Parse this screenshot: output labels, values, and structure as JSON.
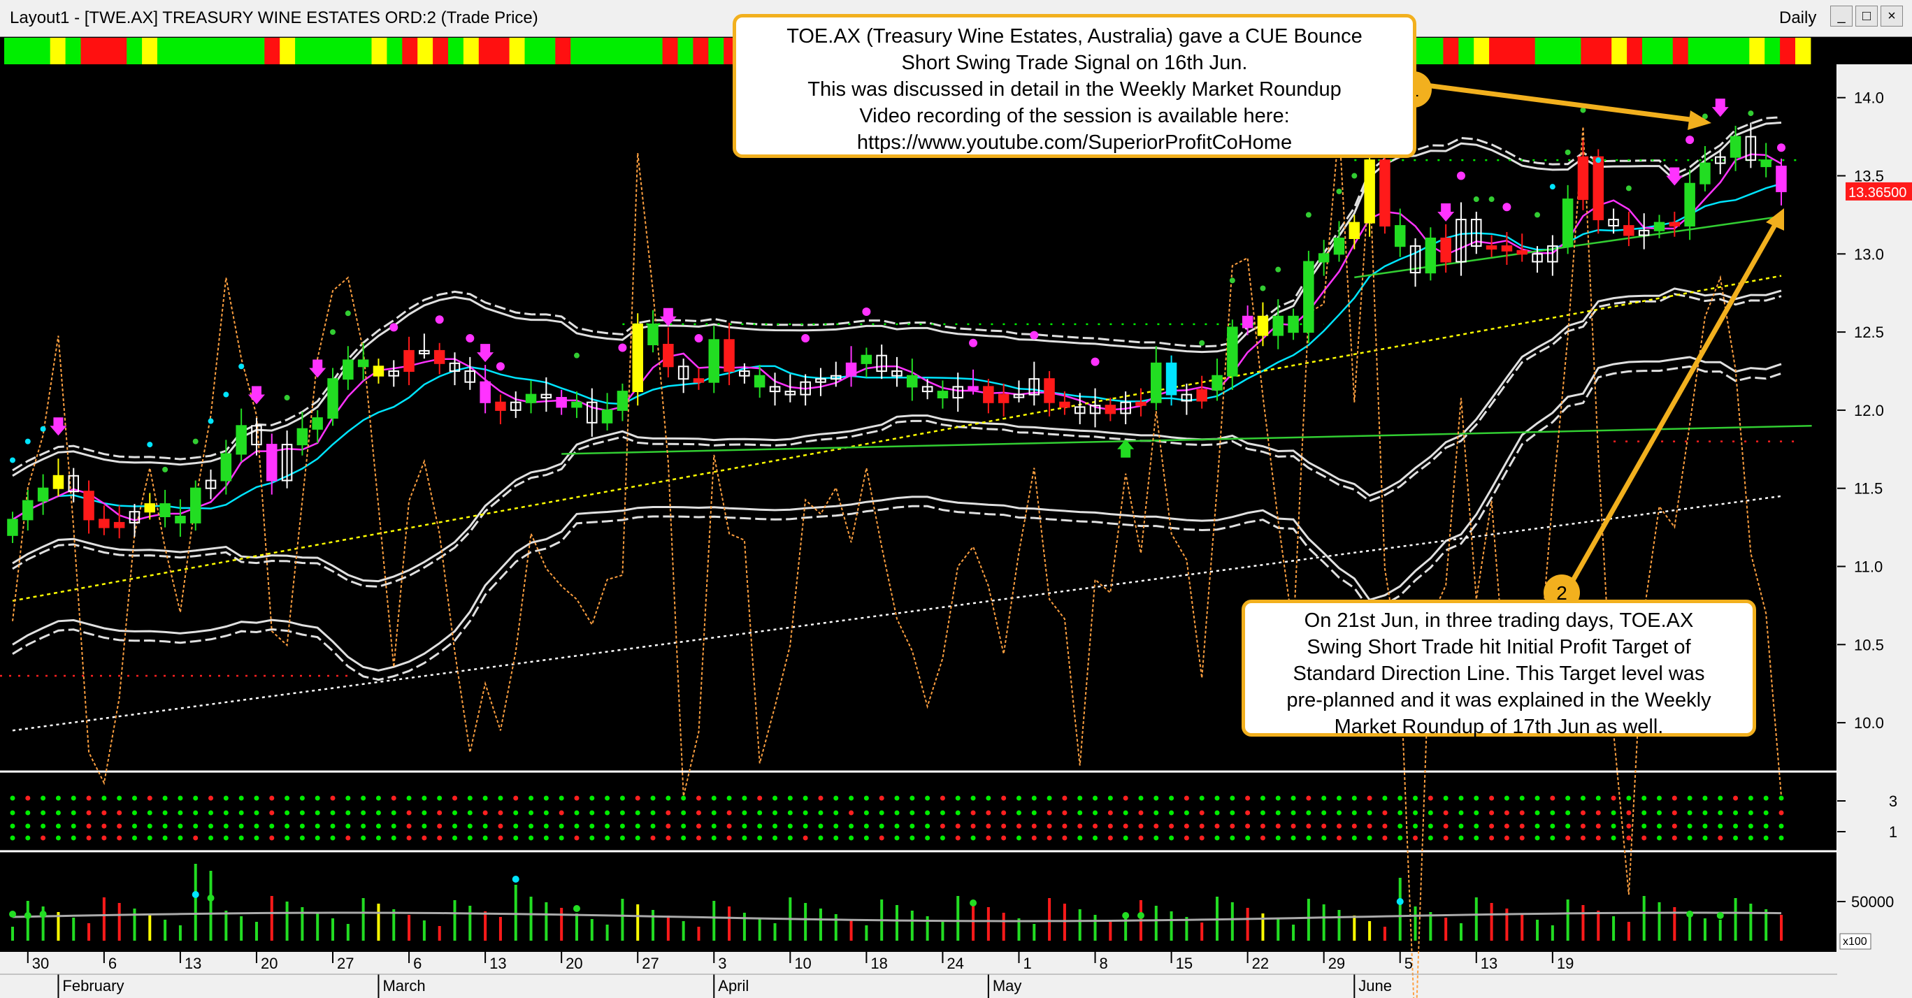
{
  "window": {
    "title": "Layout1 - [TWE.AX] TREASURY WINE ESTATES ORD:2 (Trade Price)",
    "timeframe": "Daily",
    "controls": [
      "_",
      "□",
      "×"
    ]
  },
  "colors": {
    "background": "#000000",
    "bull_candle": "#22dd22",
    "bear_candle": "#ff1a1a",
    "strength_bar": "#ffff00",
    "weakness_bar": "#ff33ff",
    "neutral_bar": "#ffffff",
    "bollinger_band": "#e0e0e0",
    "ma_fast": "#00e5ff",
    "ma_medium": "#ff33ff",
    "ma_slow": "#32cd32",
    "trend_dotted": "#ffff00",
    "oscillator": "#ffa040",
    "callout_border": "#f2b01e",
    "arrow": "#f2b01e"
  },
  "callouts": [
    {
      "number": "1",
      "lines": [
        "TOE.AX (Treasury Wine Estates, Australia) gave a CUE Bounce",
        "Short Swing Trade Signal on 16th Jun.",
        "This was discussed in detail in the Weekly Market Roundup",
        "Video recording of the session is available here:",
        "https://www.youtube.com/SuperiorProfitCoHome"
      ]
    },
    {
      "number": "2",
      "lines": [
        "On 21st Jun, in three trading days, TOE.AX",
        "Swing Short Trade hit Initial Profit Target of",
        "Standard Direction Line. This Target level was",
        "pre-planned and it was explained in the Weekly",
        "Market Roundup of 17th Jun as well."
      ]
    }
  ],
  "chart_data": [
    {
      "type": "candlestick",
      "ylim": [
        9.75,
        14.2
      ],
      "y_ticks": [
        "14.0",
        "13.5",
        "13.0",
        "12.5",
        "12.0",
        "11.5",
        "11.0",
        "10.5",
        "10.0"
      ],
      "last_price_label": "13.36500",
      "x_day_labels": [
        "30",
        "6",
        "13",
        "20",
        "27",
        "6",
        "13",
        "20",
        "27",
        "3",
        "10",
        "18",
        "24",
        "1",
        "8",
        "15",
        "22",
        "29",
        "5",
        "13",
        "19"
      ],
      "x_month_labels": [
        "February",
        "March",
        "April",
        "May",
        "June"
      ],
      "close": [
        11.3,
        11.42,
        11.5,
        11.58,
        11.48,
        11.3,
        11.25,
        11.28,
        11.35,
        11.4,
        11.32,
        11.28,
        11.5,
        11.55,
        11.72,
        11.9,
        11.78,
        11.55,
        11.78,
        11.88,
        11.95,
        12.2,
        12.32,
        12.28,
        12.22,
        12.25,
        12.38,
        12.38,
        12.3,
        12.25,
        12.18,
        12.05,
        12.0,
        12.05,
        12.1,
        12.08,
        12.02,
        12.05,
        11.92,
        12.0,
        12.12,
        12.55,
        12.42,
        12.28,
        12.2,
        12.18,
        12.45,
        12.25,
        12.22,
        12.15,
        12.12,
        12.1,
        12.18,
        12.2,
        12.22,
        12.3,
        12.35,
        12.25,
        12.22,
        12.15,
        12.12,
        12.08,
        12.15,
        12.15,
        12.05,
        12.1,
        12.1,
        12.2,
        12.05,
        12.02,
        11.98,
        12.03,
        11.98,
        12.05,
        12.05,
        12.3,
        12.1,
        12.06,
        12.13,
        12.22,
        12.53,
        12.6,
        12.48,
        12.6,
        12.5,
        12.95,
        13.0,
        13.1,
        13.2,
        13.6,
        13.18,
        13.05,
        12.88,
        13.1,
        12.95,
        13.22,
        13.05,
        13.05,
        13.02,
        13.0,
        12.95,
        13.05,
        13.35,
        13.62,
        13.22,
        13.18,
        13.12,
        13.15,
        13.2,
        13.18,
        13.45,
        13.58,
        13.62,
        13.75,
        13.6,
        13.56,
        13.4
      ],
      "bar_colors_sequence": "green,green,green,yellow,white,red,red,red,white,yellow,green,green,green,white,green,green,white,magenta,white,green,green,green,green,green,yellow,white,red,white,red,white,white,magenta,red,white,green,white,magenta,green,white,green,green,yellow,green,red,white,red,green,red,white,green,white,white,white,white,white,magenta,green,white,white,green,white,green,white,magenta,red,red,white,white,red,red,white,white,red,white,red,green,cyan,white,red,green,green,magenta,yellow,green,green,green,green,green,yellow,yellow,red,green,white,green,red,white,white,red,red,red,white,white,green,red,red,white,red,white,green,red,green,green,white,green,white,green,magenta,white",
      "signal_marks": [
        "down arrows",
        "up arrow",
        "cyan dots",
        "green dots",
        "magenta dots"
      ]
    },
    {
      "type": "table",
      "name": "indicator panel",
      "y_ticks": [
        "3",
        "1"
      ]
    },
    {
      "type": "bar",
      "name": "volume",
      "y_ticks": [
        "50000"
      ],
      "unit_label": "x100"
    }
  ]
}
